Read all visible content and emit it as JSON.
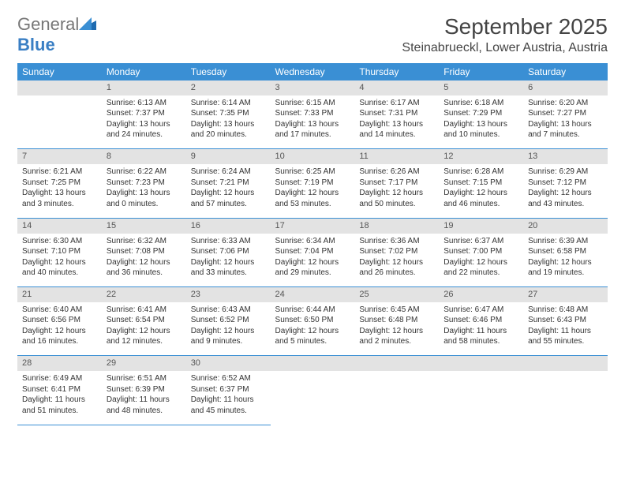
{
  "logo": {
    "text_gen": "General",
    "text_blue": "Blue"
  },
  "title": "September 2025",
  "location": "Steinabrueckl, Lower Austria, Austria",
  "colors": {
    "header_bg": "#3a8fd4",
    "header_text": "#ffffff",
    "daynum_bg": "#e3e3e3",
    "daynum_text": "#555555",
    "rule": "#3a8fd4",
    "logo_blue": "#3a7fc4",
    "body_text": "#333333"
  },
  "fonts": {
    "title_pt": 28,
    "location_pt": 16,
    "dayhead_pt": 12,
    "daynum_pt": 11,
    "cell_pt": 10
  },
  "day_headers": [
    "Sunday",
    "Monday",
    "Tuesday",
    "Wednesday",
    "Thursday",
    "Friday",
    "Saturday"
  ],
  "weeks": [
    {
      "nums": [
        "",
        "1",
        "2",
        "3",
        "4",
        "5",
        "6"
      ],
      "cells": [
        null,
        {
          "sunrise": "Sunrise: 6:13 AM",
          "sunset": "Sunset: 7:37 PM",
          "daylight": "Daylight: 13 hours and 24 minutes."
        },
        {
          "sunrise": "Sunrise: 6:14 AM",
          "sunset": "Sunset: 7:35 PM",
          "daylight": "Daylight: 13 hours and 20 minutes."
        },
        {
          "sunrise": "Sunrise: 6:15 AM",
          "sunset": "Sunset: 7:33 PM",
          "daylight": "Daylight: 13 hours and 17 minutes."
        },
        {
          "sunrise": "Sunrise: 6:17 AM",
          "sunset": "Sunset: 7:31 PM",
          "daylight": "Daylight: 13 hours and 14 minutes."
        },
        {
          "sunrise": "Sunrise: 6:18 AM",
          "sunset": "Sunset: 7:29 PM",
          "daylight": "Daylight: 13 hours and 10 minutes."
        },
        {
          "sunrise": "Sunrise: 6:20 AM",
          "sunset": "Sunset: 7:27 PM",
          "daylight": "Daylight: 13 hours and 7 minutes."
        }
      ]
    },
    {
      "nums": [
        "7",
        "8",
        "9",
        "10",
        "11",
        "12",
        "13"
      ],
      "cells": [
        {
          "sunrise": "Sunrise: 6:21 AM",
          "sunset": "Sunset: 7:25 PM",
          "daylight": "Daylight: 13 hours and 3 minutes."
        },
        {
          "sunrise": "Sunrise: 6:22 AM",
          "sunset": "Sunset: 7:23 PM",
          "daylight": "Daylight: 13 hours and 0 minutes."
        },
        {
          "sunrise": "Sunrise: 6:24 AM",
          "sunset": "Sunset: 7:21 PM",
          "daylight": "Daylight: 12 hours and 57 minutes."
        },
        {
          "sunrise": "Sunrise: 6:25 AM",
          "sunset": "Sunset: 7:19 PM",
          "daylight": "Daylight: 12 hours and 53 minutes."
        },
        {
          "sunrise": "Sunrise: 6:26 AM",
          "sunset": "Sunset: 7:17 PM",
          "daylight": "Daylight: 12 hours and 50 minutes."
        },
        {
          "sunrise": "Sunrise: 6:28 AM",
          "sunset": "Sunset: 7:15 PM",
          "daylight": "Daylight: 12 hours and 46 minutes."
        },
        {
          "sunrise": "Sunrise: 6:29 AM",
          "sunset": "Sunset: 7:12 PM",
          "daylight": "Daylight: 12 hours and 43 minutes."
        }
      ]
    },
    {
      "nums": [
        "14",
        "15",
        "16",
        "17",
        "18",
        "19",
        "20"
      ],
      "cells": [
        {
          "sunrise": "Sunrise: 6:30 AM",
          "sunset": "Sunset: 7:10 PM",
          "daylight": "Daylight: 12 hours and 40 minutes."
        },
        {
          "sunrise": "Sunrise: 6:32 AM",
          "sunset": "Sunset: 7:08 PM",
          "daylight": "Daylight: 12 hours and 36 minutes."
        },
        {
          "sunrise": "Sunrise: 6:33 AM",
          "sunset": "Sunset: 7:06 PM",
          "daylight": "Daylight: 12 hours and 33 minutes."
        },
        {
          "sunrise": "Sunrise: 6:34 AM",
          "sunset": "Sunset: 7:04 PM",
          "daylight": "Daylight: 12 hours and 29 minutes."
        },
        {
          "sunrise": "Sunrise: 6:36 AM",
          "sunset": "Sunset: 7:02 PM",
          "daylight": "Daylight: 12 hours and 26 minutes."
        },
        {
          "sunrise": "Sunrise: 6:37 AM",
          "sunset": "Sunset: 7:00 PM",
          "daylight": "Daylight: 12 hours and 22 minutes."
        },
        {
          "sunrise": "Sunrise: 6:39 AM",
          "sunset": "Sunset: 6:58 PM",
          "daylight": "Daylight: 12 hours and 19 minutes."
        }
      ]
    },
    {
      "nums": [
        "21",
        "22",
        "23",
        "24",
        "25",
        "26",
        "27"
      ],
      "cells": [
        {
          "sunrise": "Sunrise: 6:40 AM",
          "sunset": "Sunset: 6:56 PM",
          "daylight": "Daylight: 12 hours and 16 minutes."
        },
        {
          "sunrise": "Sunrise: 6:41 AM",
          "sunset": "Sunset: 6:54 PM",
          "daylight": "Daylight: 12 hours and 12 minutes."
        },
        {
          "sunrise": "Sunrise: 6:43 AM",
          "sunset": "Sunset: 6:52 PM",
          "daylight": "Daylight: 12 hours and 9 minutes."
        },
        {
          "sunrise": "Sunrise: 6:44 AM",
          "sunset": "Sunset: 6:50 PM",
          "daylight": "Daylight: 12 hours and 5 minutes."
        },
        {
          "sunrise": "Sunrise: 6:45 AM",
          "sunset": "Sunset: 6:48 PM",
          "daylight": "Daylight: 12 hours and 2 minutes."
        },
        {
          "sunrise": "Sunrise: 6:47 AM",
          "sunset": "Sunset: 6:46 PM",
          "daylight": "Daylight: 11 hours and 58 minutes."
        },
        {
          "sunrise": "Sunrise: 6:48 AM",
          "sunset": "Sunset: 6:43 PM",
          "daylight": "Daylight: 11 hours and 55 minutes."
        }
      ]
    },
    {
      "nums": [
        "28",
        "29",
        "30",
        "",
        "",
        "",
        ""
      ],
      "cells": [
        {
          "sunrise": "Sunrise: 6:49 AM",
          "sunset": "Sunset: 6:41 PM",
          "daylight": "Daylight: 11 hours and 51 minutes."
        },
        {
          "sunrise": "Sunrise: 6:51 AM",
          "sunset": "Sunset: 6:39 PM",
          "daylight": "Daylight: 11 hours and 48 minutes."
        },
        {
          "sunrise": "Sunrise: 6:52 AM",
          "sunset": "Sunset: 6:37 PM",
          "daylight": "Daylight: 11 hours and 45 minutes."
        },
        null,
        null,
        null,
        null
      ]
    }
  ]
}
